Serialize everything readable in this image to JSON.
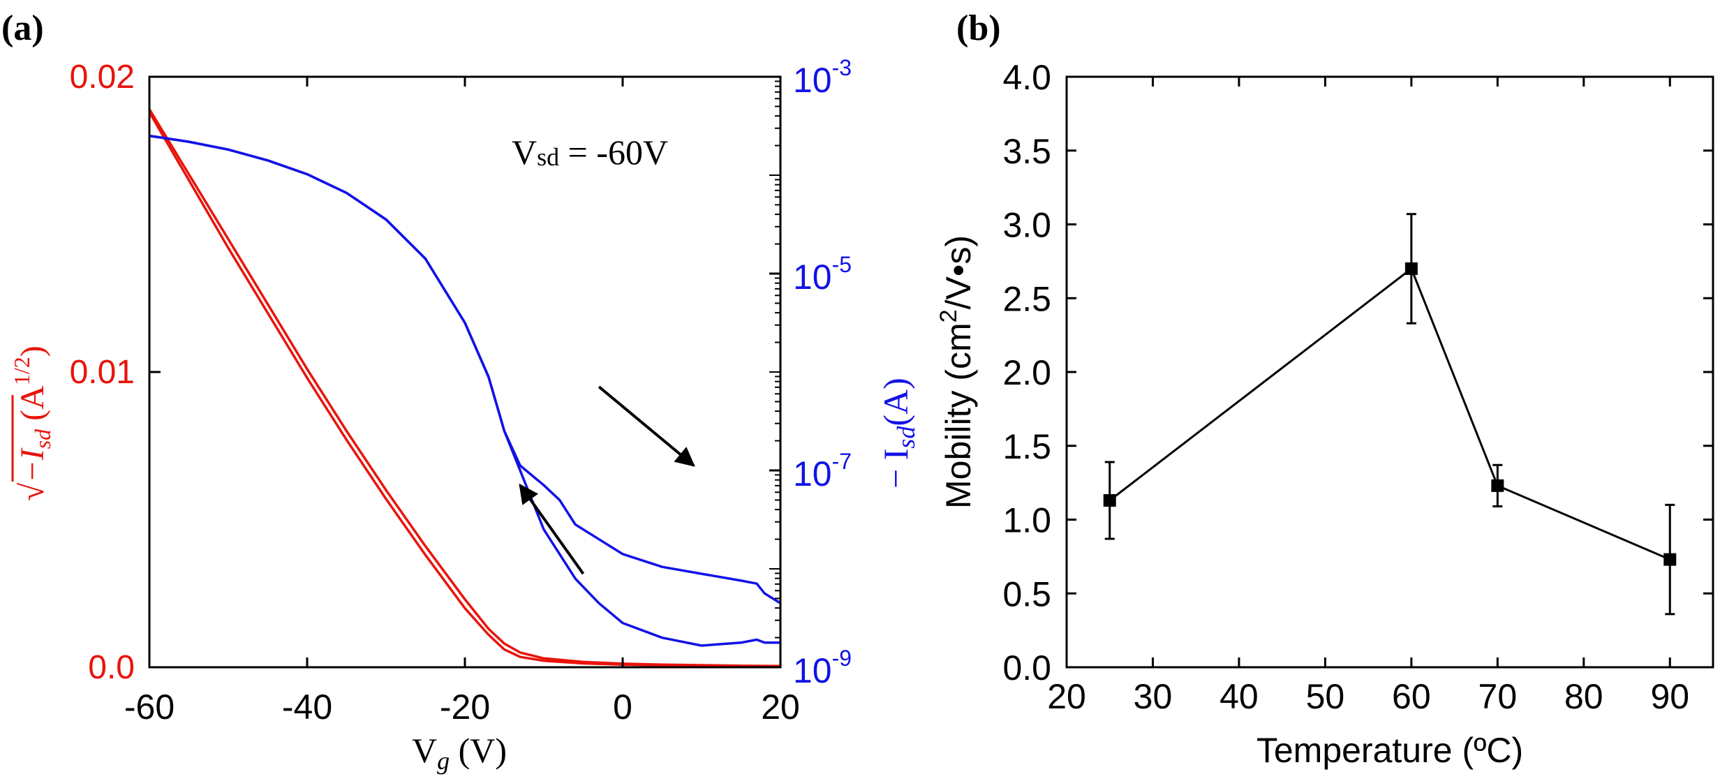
{
  "chart_data": [
    {
      "panel_label": "(a)",
      "type": "line",
      "title": "",
      "annotation": "Vsd = -60V",
      "annotation_main": "V",
      "annotation_sub": "sd",
      "annotation_rest": " = -60V",
      "xlabel_main": "V",
      "xlabel_sub": "g",
      "xlabel_rest": " (V)",
      "xlim": [
        -60,
        20
      ],
      "x_ticks": [
        -60,
        -40,
        -20,
        0,
        20
      ],
      "x_tick_labels": [
        "-60",
        "-40",
        "-20",
        "0",
        "20"
      ],
      "ylabel_left": "√−Isd (A1/2)",
      "ylabel_left_sub": "sd",
      "ylabel_left_unit": "A",
      "ylabel_left_exp": "1/2",
      "ylim_left": [
        0,
        0.02
      ],
      "left_ticks": [
        0,
        0.01,
        0.02
      ],
      "left_tick_labels": [
        "0.0",
        "0.01",
        "0.02"
      ],
      "left_color": "#e8140c",
      "ylabel_right": "−Isd(A)",
      "ylabel_right_sub": "sd",
      "ylabel_right_unit": "(A)",
      "ylim_right_log10": [
        -9,
        -3
      ],
      "right_ticks_log10": [
        -9,
        -7,
        -5,
        -3
      ],
      "right_tick_base": "10",
      "right_tick_exps": [
        "-9",
        "-7",
        "-5",
        "-3"
      ],
      "right_color": "#1212e6",
      "series": [
        {
          "name": "sqrt(-Isd) forward",
          "axis": "left",
          "color": "#e8140c",
          "x": [
            -60,
            -55,
            -50,
            -45,
            -40,
            -35,
            -30,
            -25,
            -20,
            -17,
            -15,
            -13,
            -10,
            -5,
            0,
            5,
            10,
            15,
            20
          ],
          "y": [
            0.0188,
            0.0165,
            0.0142,
            0.012,
            0.0098,
            0.0077,
            0.0057,
            0.0038,
            0.002,
            0.0011,
            0.0006,
            0.00035,
            0.00022,
            0.00013,
            9e-05,
            7e-05,
            5e-05,
            4e-05,
            3e-05
          ]
        },
        {
          "name": "sqrt(-Isd) reverse",
          "axis": "left",
          "color": "#e8140c",
          "x": [
            -60,
            -55,
            -50,
            -45,
            -40,
            -35,
            -30,
            -25,
            -20,
            -17,
            -15,
            -13,
            -10,
            -5,
            0,
            5,
            10,
            15,
            20
          ],
          "y": [
            0.0189,
            0.0167,
            0.0145,
            0.0123,
            0.0101,
            0.008,
            0.006,
            0.0041,
            0.0023,
            0.0013,
            0.0008,
            0.0005,
            0.0003,
            0.00018,
            0.00012,
            9e-05,
            7e-05,
            5e-05,
            4e-05
          ]
        },
        {
          "name": "-Isd forward sweep",
          "axis": "right",
          "color": "#1212e6",
          "x": [
            -60,
            -55,
            -50,
            -45,
            -40,
            -35,
            -30,
            -25,
            -20,
            -17,
            -15,
            -13,
            -10,
            -8,
            -6,
            -3,
            0,
            5,
            10,
            15,
            17,
            18,
            20
          ],
          "log10y": [
            -3.6,
            -3.66,
            -3.74,
            -3.85,
            -3.99,
            -4.18,
            -4.45,
            -4.85,
            -5.5,
            -6.05,
            -6.6,
            -7.0,
            -7.6,
            -7.85,
            -8.1,
            -8.35,
            -8.55,
            -8.7,
            -8.78,
            -8.75,
            -8.72,
            -8.75,
            -8.75
          ]
        },
        {
          "name": "-Isd reverse sweep",
          "axis": "right",
          "color": "#1212e6",
          "x": [
            -60,
            -55,
            -50,
            -45,
            -40,
            -35,
            -30,
            -25,
            -20,
            -17,
            -15,
            -13,
            -10,
            -8,
            -6,
            -3,
            0,
            5,
            10,
            15,
            17,
            18,
            20
          ],
          "log10y": [
            -3.6,
            -3.66,
            -3.74,
            -3.85,
            -3.99,
            -4.18,
            -4.45,
            -4.85,
            -5.5,
            -6.05,
            -6.6,
            -6.95,
            -7.15,
            -7.3,
            -7.55,
            -7.7,
            -7.85,
            -7.98,
            -8.05,
            -8.12,
            -8.15,
            -8.25,
            -8.35
          ]
        }
      ],
      "arrows": [
        {
          "name": "forward-sweep-arrow",
          "from": [
            -3,
            -6.15
          ],
          "to": [
            9,
            -6.95
          ]
        },
        {
          "name": "reverse-sweep-arrow",
          "from": [
            -5,
            -8.05
          ],
          "to": [
            -13,
            -7.15
          ]
        }
      ]
    },
    {
      "panel_label": "(b)",
      "type": "line",
      "title": "",
      "xlabel": "Temperature (ºC)",
      "ylabel": "Mobility (cm2/V•s)",
      "ylabel_main": "Mobility (cm",
      "ylabel_exp": "2",
      "ylabel_rest": "/V•s)",
      "xlim": [
        20,
        95
      ],
      "ylim": [
        0,
        4.0
      ],
      "x_ticks": [
        20,
        30,
        40,
        50,
        60,
        70,
        80,
        90
      ],
      "x_tick_labels": [
        "20",
        "30",
        "40",
        "50",
        "60",
        "70",
        "80",
        "90"
      ],
      "y_ticks": [
        0,
        0.5,
        1.0,
        1.5,
        2.0,
        2.5,
        3.0,
        3.5,
        4.0
      ],
      "y_tick_labels": [
        "0.0",
        "0.5",
        "1.0",
        "1.5",
        "2.0",
        "2.5",
        "3.0",
        "3.5",
        "4.0"
      ],
      "series": [
        {
          "name": "Mobility",
          "color": "#000000",
          "x": [
            25,
            60,
            70,
            90
          ],
          "y": [
            1.13,
            2.7,
            1.23,
            0.73
          ],
          "err": [
            0.26,
            0.37,
            0.14,
            0.37
          ]
        }
      ]
    }
  ]
}
